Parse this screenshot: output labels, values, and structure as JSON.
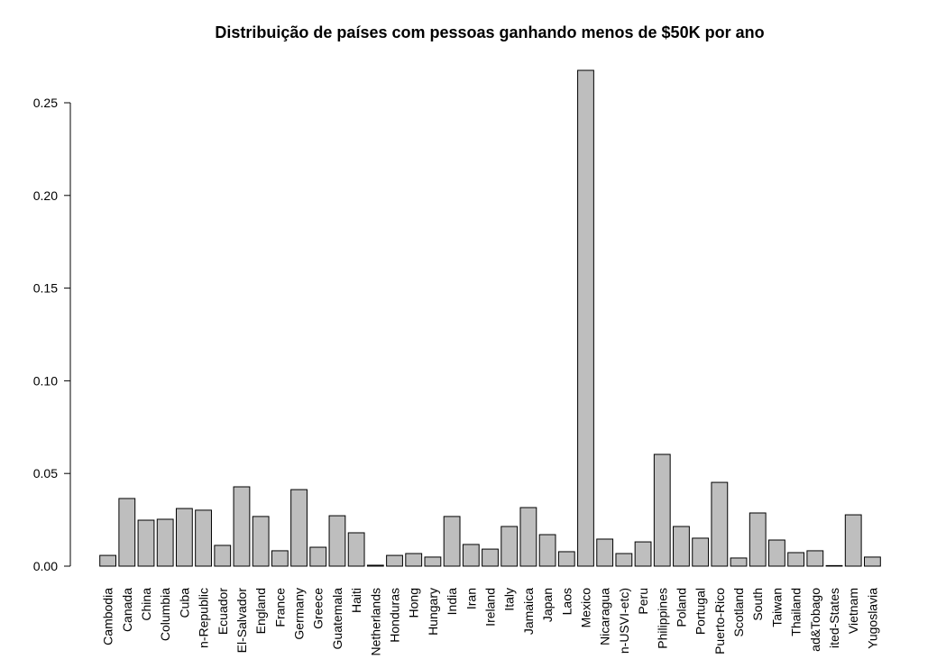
{
  "chart_data": {
    "type": "bar",
    "title": "Distribuição de países com pessoas ganhando menos de $50K por ano",
    "categories": [
      "Cambodia",
      "Canada",
      "China",
      "Columbia",
      "Cuba",
      "n-Republic",
      "Ecuador",
      "El-Salvador",
      "England",
      "France",
      "Germany",
      "Greece",
      "Guatemala",
      "Haiti",
      "Netherlands",
      "Honduras",
      "Hong",
      "Hungary",
      "India",
      "Iran",
      "Ireland",
      "Italy",
      "Jamaica",
      "Japan",
      "Laos",
      "Mexico",
      "Nicaragua",
      "n-USVI-etc)",
      "Peru",
      "Philippines",
      "Poland",
      "Portugal",
      "Puerto-Rico",
      "Scotland",
      "South",
      "Taiwan",
      "Thailand",
      "ad&Tobago",
      "ited-States",
      "Vietnam",
      "Yugoslavia"
    ],
    "values": [
      0.0058,
      0.0365,
      0.0248,
      0.0253,
      0.0311,
      0.0302,
      0.0112,
      0.0428,
      0.0268,
      0.0083,
      0.0413,
      0.0102,
      0.0272,
      0.018,
      0.0005,
      0.0058,
      0.0068,
      0.0049,
      0.0268,
      0.0117,
      0.0092,
      0.0214,
      0.0316,
      0.017,
      0.0078,
      0.2675,
      0.0146,
      0.0068,
      0.0131,
      0.0603,
      0.0214,
      0.0151,
      0.0452,
      0.0044,
      0.0287,
      0.0141,
      0.0073,
      0.0083,
      0.0003,
      0.0277,
      0.0049
    ],
    "color": "#bebebe",
    "ylim": [
      0,
      0.27
    ],
    "yticks": [
      {
        "value": 0,
        "label": "0.00"
      },
      {
        "value": 0.05,
        "label": "0.05"
      },
      {
        "value": 0.1,
        "label": "0.10"
      },
      {
        "value": 0.15,
        "label": "0.15"
      },
      {
        "value": 0.2,
        "label": "0.20"
      },
      {
        "value": 0.25,
        "label": "0.25"
      }
    ],
    "grid": false
  }
}
